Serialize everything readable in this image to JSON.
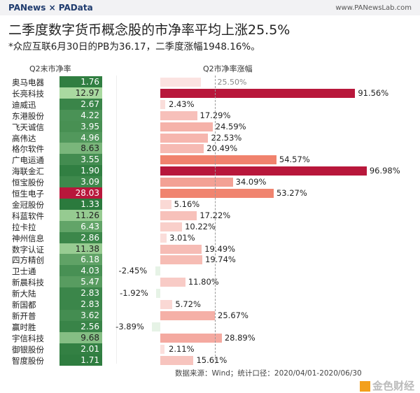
{
  "header": {
    "logo": "PANews × PAData",
    "site": "www.PANewsLab.com"
  },
  "title": "二季度数字货币概念股的市净率平均上涨25.5%",
  "subtitle": "*众应互联6月30日的PB为36.17，二季度涨幅1948.16%。",
  "footer": "数据来源：Wind；统计口径：2020/04/01-2020/06/30",
  "watermark": "金色财经",
  "chart_data": {
    "type": "bar",
    "left_header": "Q2末市净率",
    "right_header": "Q2市净率涨幅",
    "average_label": "25.50%",
    "average": 25.5,
    "categories": [
      "奥马电器",
      "长亮科技",
      "迪威迅",
      "东港股份",
      "飞天诚信",
      "高伟达",
      "格尔软件",
      "广电运通",
      "海联金汇",
      "恒宝股份",
      "恒生电子",
      "金冠股份",
      "科蓝软件",
      "拉卡拉",
      "神州信息",
      "数字认证",
      "四方精创",
      "卫士通",
      "新晨科技",
      "新大陆",
      "新国都",
      "新开普",
      "赢时胜",
      "宇信科技",
      "御银股份",
      "智度股份"
    ],
    "pb": [
      1.76,
      12.97,
      2.67,
      4.22,
      3.95,
      4.96,
      8.63,
      3.55,
      1.9,
      3.09,
      28.03,
      1.33,
      11.26,
      6.43,
      2.86,
      11.38,
      6.18,
      4.03,
      5.47,
      2.83,
      2.83,
      3.62,
      2.56,
      9.68,
      2.01,
      1.71
    ],
    "pb_labels": [
      "1.76",
      "12.97",
      "2.67",
      "4.22",
      "3.95",
      "4.96",
      "8.63",
      "3.55",
      "1.90",
      "3.09",
      "28.03",
      "1.33",
      "11.26",
      "6.43",
      "2.86",
      "11.38",
      "6.18",
      "4.03",
      "5.47",
      "2.83",
      "2.83",
      "3.62",
      "2.56",
      "9.68",
      "2.01",
      "1.71"
    ],
    "change_pct": [
      null,
      91.56,
      2.43,
      17.29,
      24.59,
      22.53,
      20.49,
      54.57,
      96.98,
      34.09,
      53.27,
      5.16,
      17.22,
      10.22,
      3.01,
      19.49,
      19.74,
      -2.45,
      11.8,
      -1.92,
      5.72,
      25.67,
      -3.89,
      28.89,
      2.11,
      15.61
    ],
    "change_labels": [
      "",
      "91.56%",
      "2.43%",
      "17.29%",
      "24.59%",
      "22.53%",
      "20.49%",
      "54.57%",
      "96.98%",
      "34.09%",
      "53.27%",
      "5.16%",
      "17.22%",
      "10.22%",
      "3.01%",
      "19.49%",
      "19.74%",
      "-2.45%",
      "11.80%",
      "-1.92%",
      "5.72%",
      "25.67%",
      "-3.89%",
      "28.89%",
      "2.11%",
      "15.61%"
    ],
    "colors": {
      "pb_low": "#2b7a3d",
      "pb_mid": "#a9d9a0",
      "pb_high": "#b8173b",
      "bar_low": "#fbe3e1",
      "bar_mid": "#f4a79d",
      "bar_high": "#ef7a62",
      "bar_max": "#b8173b",
      "negative": "#e6f3e6"
    }
  }
}
